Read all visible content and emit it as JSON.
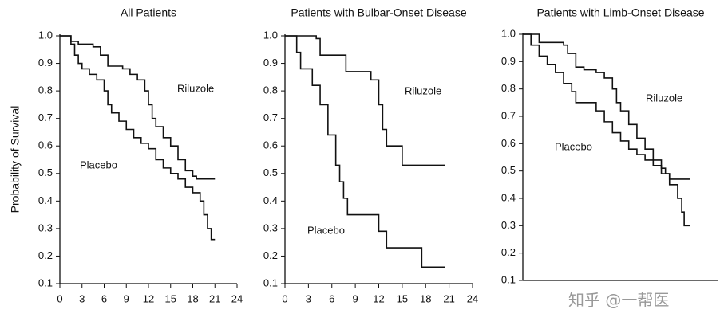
{
  "chart_data": [
    {
      "type": "line",
      "step": true,
      "title": "All Patients",
      "ylabel": "Probability of Survival",
      "xlim": [
        0,
        24
      ],
      "xticks": [
        0,
        3,
        6,
        9,
        12,
        15,
        18,
        21,
        24
      ],
      "ylim": [
        0.1,
        1
      ],
      "yticks": [
        {
          "value": 0.1,
          "label": "0.1"
        },
        {
          "value": 0.2,
          "label": "0.2"
        },
        {
          "value": 0.3,
          "label": "0.3"
        },
        {
          "value": 0.4,
          "label": "0.4"
        },
        {
          "value": 0.5,
          "label": "0.5"
        },
        {
          "value": 0.6,
          "label": "0.6"
        },
        {
          "value": 0.7,
          "label": "0.7"
        },
        {
          "value": 0.8,
          "label": "0.8"
        },
        {
          "value": 0.9,
          "label": "0.9"
        },
        {
          "value": 1,
          "label": "1.0"
        }
      ],
      "series": [
        {
          "name": "Riluzole",
          "color": "#111111",
          "x": [
            0,
            1.5,
            2.5,
            4.5,
            5.5,
            6.5,
            8.5,
            9.5,
            10.5,
            11.5,
            12,
            12.5,
            13,
            14,
            15,
            16,
            17,
            18,
            18.5,
            21
          ],
          "values": [
            1,
            0.98,
            0.97,
            0.96,
            0.93,
            0.89,
            0.88,
            0.86,
            0.84,
            0.8,
            0.75,
            0.7,
            0.67,
            0.63,
            0.6,
            0.55,
            0.51,
            0.49,
            0.48,
            0.48
          ]
        },
        {
          "name": "Placebo",
          "color": "#111111",
          "x": [
            0,
            1.5,
            2,
            2.5,
            3,
            4,
            5,
            6,
            6.5,
            7,
            8,
            9,
            10,
            11,
            12,
            13,
            14,
            15,
            16,
            17,
            18,
            19,
            19.5,
            20,
            20.5,
            21
          ],
          "values": [
            1,
            0.97,
            0.93,
            0.9,
            0.88,
            0.86,
            0.84,
            0.8,
            0.75,
            0.72,
            0.69,
            0.66,
            0.63,
            0.61,
            0.59,
            0.55,
            0.52,
            0.5,
            0.48,
            0.45,
            0.43,
            0.4,
            0.35,
            0.3,
            0.26,
            0.26
          ]
        }
      ]
    },
    {
      "type": "line",
      "step": true,
      "title": "Patients with Bulbar-Onset Disease",
      "xlim": [
        0,
        24
      ],
      "xticks": [
        0,
        3,
        6,
        9,
        12,
        15,
        18,
        21,
        24
      ],
      "ylim": [
        0.1,
        1
      ],
      "yticks": [
        {
          "value": 0.1,
          "label": "0.1"
        },
        {
          "value": 0.2,
          "label": "0.2"
        },
        {
          "value": 0.3,
          "label": "0.3"
        },
        {
          "value": 0.4,
          "label": "0.4"
        },
        {
          "value": 0.5,
          "label": "0.5"
        },
        {
          "value": 0.6,
          "label": "0.6"
        },
        {
          "value": 0.7,
          "label": "0.7"
        },
        {
          "value": 0.8,
          "label": "0.8"
        },
        {
          "value": 0.9,
          "label": "0.9"
        },
        {
          "value": 1,
          "label": "1.0"
        }
      ],
      "series": [
        {
          "name": "Riluzole",
          "color": "#111111",
          "x": [
            0,
            4,
            4.5,
            7.8,
            11,
            12,
            12.5,
            13,
            15,
            20.5
          ],
          "values": [
            1,
            0.99,
            0.93,
            0.87,
            0.84,
            0.75,
            0.66,
            0.6,
            0.53,
            0.53
          ]
        },
        {
          "name": "Placebo",
          "color": "#111111",
          "x": [
            0,
            1.5,
            2,
            3.5,
            4.5,
            5.5,
            6.5,
            7,
            7.5,
            8,
            11,
            12,
            13,
            15,
            17.5,
            20.5
          ],
          "values": [
            1,
            0.94,
            0.88,
            0.82,
            0.75,
            0.64,
            0.53,
            0.47,
            0.41,
            0.35,
            0.35,
            0.29,
            0.23,
            0.23,
            0.16,
            0.16
          ]
        }
      ]
    },
    {
      "type": "line",
      "step": true,
      "title": "Patients with Limb-Onset Disease",
      "xlim": [
        0,
        24
      ],
      "ylim": [
        0.1,
        1
      ],
      "yticks": [
        {
          "value": 0.1,
          "label": "0.1"
        },
        {
          "value": 0.2,
          "label": "0.2"
        },
        {
          "value": 0.3,
          "label": "0.3"
        },
        {
          "value": 0.4,
          "label": "0.4"
        },
        {
          "value": 0.5,
          "label": "0.5"
        },
        {
          "value": 0.6,
          "label": "0.6"
        },
        {
          "value": 0.7,
          "label": "0.7"
        },
        {
          "value": 0.8,
          "label": "0.8"
        },
        {
          "value": 0.9,
          "label": "0.9"
        },
        {
          "value": 1,
          "label": "1.0"
        }
      ],
      "series": [
        {
          "name": "Riluzole",
          "color": "#111111",
          "x": [
            0,
            2,
            5,
            5.5,
            6.5,
            7.5,
            9,
            10,
            11,
            11.5,
            12,
            13,
            14,
            15,
            16,
            17,
            17.5,
            18,
            20.5
          ],
          "values": [
            1,
            0.97,
            0.96,
            0.93,
            0.88,
            0.87,
            0.86,
            0.84,
            0.8,
            0.75,
            0.72,
            0.67,
            0.62,
            0.58,
            0.54,
            0.51,
            0.49,
            0.47,
            0.47
          ]
        },
        {
          "name": "Placebo",
          "color": "#111111",
          "x": [
            0,
            1,
            2,
            3,
            4,
            5,
            6,
            6.5,
            8.5,
            9,
            10,
            11,
            12,
            13,
            14,
            15,
            16,
            17,
            18,
            19,
            19.5,
            19.8,
            20.5
          ],
          "values": [
            1,
            0.96,
            0.92,
            0.89,
            0.86,
            0.82,
            0.79,
            0.75,
            0.75,
            0.72,
            0.68,
            0.64,
            0.61,
            0.58,
            0.56,
            0.54,
            0.52,
            0.49,
            0.45,
            0.4,
            0.35,
            0.3,
            0.3
          ]
        }
      ]
    }
  ],
  "watermark": "知乎 @一帮医"
}
